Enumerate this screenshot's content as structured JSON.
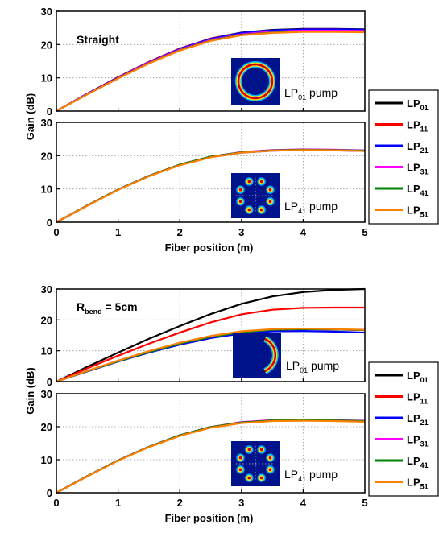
{
  "chart_data": [
    {
      "panel": "Straight / LP01 pump",
      "type": "line",
      "annotation": "Straight",
      "annotation_sub": "",
      "annotation_suffix": "",
      "inset": {
        "text": "LP",
        "sub": "01",
        "suffix": " pump",
        "pattern": "ring"
      },
      "xlim": [
        0,
        5
      ],
      "ylim": [
        0,
        30
      ],
      "xticks": [
        "0",
        "1",
        "2",
        "3",
        "4",
        "5"
      ],
      "yticks": [
        "0",
        "10",
        "20",
        "30"
      ],
      "ylabel": "Gain (dB)",
      "x": [
        0,
        0.5,
        1,
        1.5,
        2,
        2.5,
        3,
        3.5,
        4,
        4.5,
        5
      ],
      "series": [
        {
          "name": "LP01",
          "color": "#000000",
          "values": [
            0,
            5.2,
            10.2,
            14.8,
            18.8,
            21.8,
            23.6,
            24.4,
            24.7,
            24.7,
            24.6
          ]
        },
        {
          "name": "LP11",
          "color": "#ff0000",
          "values": [
            0,
            5.2,
            10.2,
            14.8,
            18.8,
            21.8,
            23.5,
            24.3,
            24.6,
            24.6,
            24.5
          ]
        },
        {
          "name": "LP21",
          "color": "#0000ff",
          "values": [
            0,
            5.2,
            10.1,
            14.7,
            18.7,
            21.7,
            23.5,
            24.3,
            24.6,
            24.6,
            24.5
          ]
        },
        {
          "name": "LP31",
          "color": "#ff00ff",
          "values": [
            0,
            5.1,
            10.0,
            14.6,
            18.5,
            21.4,
            23.1,
            23.9,
            24.2,
            24.2,
            24.1
          ]
        },
        {
          "name": "LP41",
          "color": "#008000",
          "values": [
            0,
            5.0,
            9.9,
            14.4,
            18.3,
            21.2,
            22.9,
            23.6,
            23.9,
            23.9,
            23.8
          ]
        },
        {
          "name": "LP51",
          "color": "#ff8000",
          "values": [
            0,
            5.0,
            9.8,
            14.3,
            18.2,
            21.1,
            22.8,
            23.5,
            23.8,
            23.8,
            23.7
          ]
        }
      ]
    },
    {
      "panel": "Straight / LP41 pump",
      "type": "line",
      "annotation": "",
      "annotation_sub": "",
      "annotation_suffix": "",
      "inset": {
        "text": "LP",
        "sub": "41",
        "suffix": " pump",
        "pattern": "lobes"
      },
      "xlim": [
        0,
        5
      ],
      "ylim": [
        0,
        30
      ],
      "xticks": [
        "0",
        "1",
        "2",
        "3",
        "4",
        "5"
      ],
      "yticks": [
        "0",
        "10",
        "20",
        "30"
      ],
      "xlabel": "Fiber position (m)",
      "x": [
        0,
        0.5,
        1,
        1.5,
        2,
        2.5,
        3,
        3.5,
        4,
        4.5,
        5
      ],
      "series": [
        {
          "name": "LP01",
          "color": "#000000",
          "values": [
            0,
            5.0,
            9.8,
            13.9,
            17.3,
            19.7,
            21.0,
            21.6,
            21.8,
            21.7,
            21.5
          ]
        },
        {
          "name": "LP11",
          "color": "#ff0000",
          "values": [
            0,
            5.0,
            9.8,
            13.9,
            17.3,
            19.7,
            21.0,
            21.6,
            21.8,
            21.7,
            21.5
          ]
        },
        {
          "name": "LP21",
          "color": "#0000ff",
          "values": [
            0,
            5.0,
            9.8,
            13.9,
            17.2,
            19.6,
            20.9,
            21.5,
            21.7,
            21.6,
            21.4
          ]
        },
        {
          "name": "LP31",
          "color": "#ff00ff",
          "values": [
            0,
            5.0,
            9.8,
            13.9,
            17.3,
            19.7,
            21.1,
            21.7,
            21.9,
            21.8,
            21.6
          ]
        },
        {
          "name": "LP41",
          "color": "#008000",
          "values": [
            0,
            5.0,
            9.8,
            13.9,
            17.3,
            19.7,
            21.0,
            21.6,
            21.8,
            21.7,
            21.5
          ]
        },
        {
          "name": "LP51",
          "color": "#ff8000",
          "values": [
            0,
            4.9,
            9.7,
            13.8,
            17.1,
            19.5,
            20.9,
            21.5,
            21.7,
            21.6,
            21.4
          ]
        }
      ]
    },
    {
      "panel": "Rbend = 5cm / LP01 pump",
      "type": "line",
      "annotation": "R",
      "annotation_sub": "bend",
      "annotation_suffix": " = 5cm",
      "inset": {
        "text": "LP",
        "sub": "01",
        "suffix": " pump",
        "pattern": "crescent"
      },
      "xlim": [
        0,
        5
      ],
      "ylim": [
        0,
        30
      ],
      "xticks": [
        "0",
        "1",
        "2",
        "3",
        "4",
        "5"
      ],
      "yticks": [
        "0",
        "10",
        "20",
        "30"
      ],
      "ylabel": "Gain (dB)",
      "x": [
        0,
        0.5,
        1,
        1.5,
        2,
        2.5,
        3,
        3.5,
        4,
        4.5,
        5
      ],
      "series": [
        {
          "name": "LP01",
          "color": "#000000",
          "values": [
            0,
            4.8,
            9.4,
            13.9,
            18.0,
            21.9,
            25.2,
            27.6,
            29.0,
            29.7,
            30.0
          ]
        },
        {
          "name": "LP11",
          "color": "#ff0000",
          "values": [
            0,
            4.3,
            8.4,
            12.3,
            15.9,
            19.2,
            21.8,
            23.3,
            23.9,
            24.0,
            24.0
          ]
        },
        {
          "name": "LP21",
          "color": "#0000ff",
          "values": [
            0,
            3.3,
            6.5,
            9.4,
            12.0,
            14.1,
            15.6,
            16.3,
            16.4,
            16.2,
            15.9
          ]
        },
        {
          "name": "LP31",
          "color": "#ff00ff",
          "values": [
            0,
            3.4,
            6.6,
            9.6,
            12.3,
            14.5,
            16.0,
            16.8,
            17.0,
            16.9,
            16.7
          ]
        },
        {
          "name": "LP41",
          "color": "#008000",
          "values": [
            0,
            3.4,
            6.6,
            9.6,
            12.3,
            14.5,
            16.0,
            16.8,
            17.0,
            16.9,
            16.7
          ]
        },
        {
          "name": "LP51",
          "color": "#ff8000",
          "values": [
            0,
            3.5,
            6.8,
            9.9,
            12.6,
            14.8,
            16.3,
            17.0,
            17.2,
            17.0,
            16.8
          ]
        }
      ]
    },
    {
      "panel": "Rbend = 5cm / LP41 pump",
      "type": "line",
      "annotation": "",
      "annotation_sub": "",
      "annotation_suffix": "",
      "inset": {
        "text": "LP",
        "sub": "41",
        "suffix": " pump",
        "pattern": "lobes"
      },
      "xlim": [
        0,
        5
      ],
      "ylim": [
        0,
        30
      ],
      "xticks": [
        "0",
        "1",
        "2",
        "3",
        "4",
        "5"
      ],
      "yticks": [
        "0",
        "10",
        "20",
        "30"
      ],
      "xlabel": "Fiber position (m)",
      "x": [
        0,
        0.5,
        1,
        1.5,
        2,
        2.5,
        3,
        3.5,
        4,
        4.5,
        5
      ],
      "series": [
        {
          "name": "LP01",
          "color": "#000000",
          "values": [
            0,
            5.0,
            9.8,
            13.9,
            17.4,
            19.9,
            21.3,
            21.9,
            22.0,
            21.9,
            21.7
          ]
        },
        {
          "name": "LP11",
          "color": "#ff0000",
          "values": [
            0,
            5.0,
            9.8,
            13.9,
            17.4,
            19.9,
            21.3,
            21.9,
            22.0,
            21.9,
            21.7
          ]
        },
        {
          "name": "LP21",
          "color": "#0000ff",
          "values": [
            0,
            5.0,
            9.8,
            13.9,
            17.3,
            19.8,
            21.2,
            21.8,
            21.9,
            21.8,
            21.6
          ]
        },
        {
          "name": "LP31",
          "color": "#ff00ff",
          "values": [
            0,
            5.0,
            9.8,
            13.9,
            17.4,
            19.9,
            21.4,
            22.0,
            22.1,
            22.0,
            21.8
          ]
        },
        {
          "name": "LP41",
          "color": "#008000",
          "values": [
            0,
            5.0,
            9.8,
            13.9,
            17.4,
            19.9,
            21.3,
            21.9,
            22.0,
            21.9,
            21.7
          ]
        },
        {
          "name": "LP51",
          "color": "#ff8000",
          "values": [
            0,
            4.9,
            9.7,
            13.8,
            17.2,
            19.7,
            21.1,
            21.7,
            21.8,
            21.7,
            21.5
          ]
        }
      ]
    }
  ],
  "legend": [
    {
      "text": "LP",
      "sub": "01",
      "color": "#000000"
    },
    {
      "text": "LP",
      "sub": "11",
      "color": "#ff0000"
    },
    {
      "text": "LP",
      "sub": "21",
      "color": "#0000ff"
    },
    {
      "text": "LP",
      "sub": "31",
      "color": "#ff00ff"
    },
    {
      "text": "LP",
      "sub": "41",
      "color": "#008000"
    },
    {
      "text": "LP",
      "sub": "51",
      "color": "#ff8000"
    }
  ]
}
